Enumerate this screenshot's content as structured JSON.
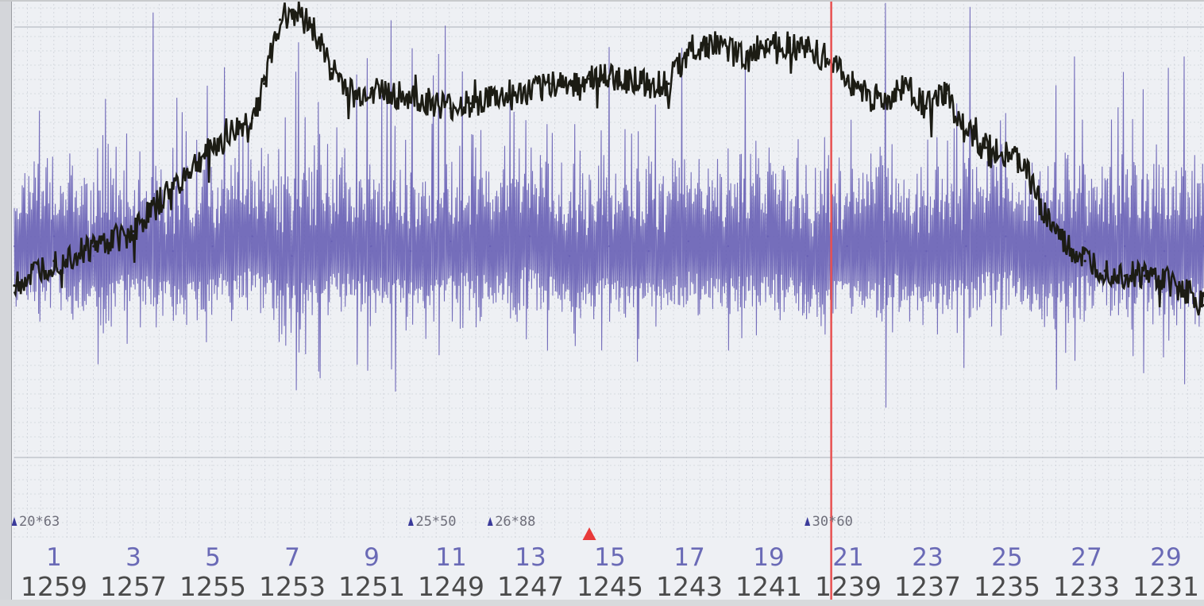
{
  "colors": {
    "background": "#eef0f4",
    "grid_minor": "#cfd3da",
    "grid_major": "#b9bcc4",
    "purple_trace": "#5f57b0",
    "black_trace": "#1c1c14",
    "cursor": "#e85050",
    "tick_top": "#6a6ab6",
    "tick_bottom": "#4a4a4a",
    "marker": "#3a3a9a",
    "arrow": "#e83a3a"
  },
  "chart_data": {
    "type": "line",
    "title": "",
    "xlabel": "",
    "ylabel": "",
    "xlim": [
      0,
      30
    ],
    "ylim": [
      0,
      100
    ],
    "grid": true,
    "x_ticks_top": [
      "1",
      "3",
      "5",
      "7",
      "9",
      "11",
      "13",
      "15",
      "17",
      "19",
      "21",
      "23",
      "25",
      "27",
      "29"
    ],
    "x_ticks_bottom": [
      "1259",
      "1257",
      "1255",
      "1253",
      "1251",
      "1249",
      "1247",
      "1245",
      "1243",
      "1241",
      "1239",
      "1237",
      "1235",
      "1233",
      "1231"
    ],
    "cursor_x": 20.6,
    "arrow_x": 14.5,
    "markers": [
      {
        "x": 0.0,
        "label": "20*63"
      },
      {
        "x": 10.0,
        "label": "25*50"
      },
      {
        "x": 12.0,
        "label": "26*88"
      },
      {
        "x": 20.0,
        "label": "30*60"
      }
    ],
    "series": [
      {
        "color": "#1c1c14",
        "x": [
          0,
          1,
          2,
          3,
          4,
          5,
          6,
          6.3,
          6.7,
          7,
          7.5,
          8,
          8.6,
          9,
          9.5,
          10,
          10.5,
          11,
          11.5,
          12,
          12.5,
          13,
          13.5,
          14,
          14.5,
          15,
          15.5,
          16,
          16.5,
          17,
          17.5,
          18,
          18.5,
          19,
          19.5,
          20,
          20.5,
          21,
          21.5,
          22,
          22.5,
          23,
          23.5,
          24,
          24.5,
          25,
          25.5,
          26,
          26.5,
          27,
          27.5,
          28,
          28.5,
          29,
          29.5,
          30
        ],
        "y": [
          42,
          47,
          50,
          53,
          62,
          70,
          76,
          83,
          96,
          98,
          95,
          86,
          80,
          82,
          81,
          80,
          79,
          78,
          79,
          80,
          80,
          81,
          83,
          83,
          84,
          84,
          84,
          83,
          83,
          90,
          91,
          90,
          88,
          92,
          91,
          90,
          88,
          84,
          81,
          79,
          83,
          78,
          81,
          73,
          70,
          69,
          66,
          56,
          50,
          47,
          45,
          44,
          44,
          43,
          41,
          38
        ]
      },
      {
        "color": "#5f57b0",
        "x": [
          0,
          1,
          2,
          3,
          4,
          5,
          6,
          7,
          8,
          9,
          10,
          11,
          12,
          13,
          14,
          15,
          16,
          17,
          18,
          19,
          20,
          21,
          22,
          23,
          24,
          25,
          26,
          27,
          28,
          29,
          30
        ],
        "y": [
          50,
          52,
          48,
          51,
          49,
          50,
          52,
          48,
          51,
          50,
          49,
          51,
          50,
          52,
          48,
          50,
          49,
          51,
          50,
          52,
          48,
          50,
          51,
          49,
          50,
          52,
          48,
          51,
          50,
          49,
          50
        ]
      }
    ]
  }
}
